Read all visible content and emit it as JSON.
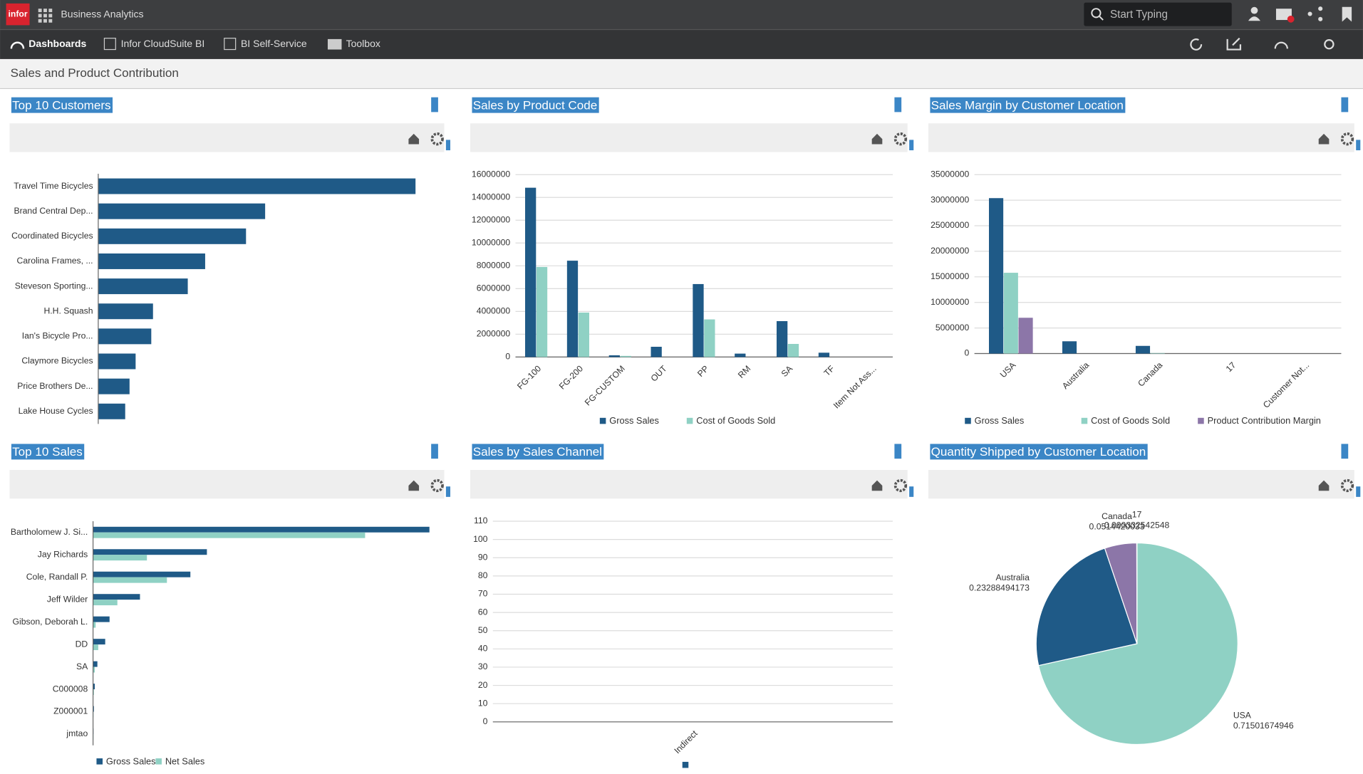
{
  "app": {
    "logo": "infor",
    "name": "Business Analytics",
    "search_placeholder": "Start Typing"
  },
  "nav": [
    "Dashboards",
    "Infor CloudSuite BI",
    "BI Self-Service",
    "Toolbox"
  ],
  "page_title": "Sales and Product Contribution",
  "chart_data": [
    {
      "type": "hbar",
      "title": "Top 10 Customers",
      "categories": [
        "Travel Time Bicycles",
        "Brand Central Dep...",
        "Coordinated Bicycles",
        "Carolina Frames, ...",
        "Steveson Sporting...",
        "H.H. Squash",
        "Ian's Bicycle Pro...",
        "Claymore Bicycles",
        "Price Brothers De...",
        "Lake House Cycles"
      ],
      "values": [
        365,
        192,
        170,
        123,
        103,
        63,
        61,
        43,
        36,
        31
      ],
      "color": "#1f5a87"
    },
    {
      "type": "bar",
      "title": "Sales by Product Code",
      "categories": [
        "FG-100",
        "FG-200",
        "FG-CUSTOM",
        "OUT",
        "PP",
        "RM",
        "SA",
        "TF",
        "Item Not Ass..."
      ],
      "series": [
        {
          "name": "Gross Sales",
          "color": "#1f5a87",
          "values": [
            14850000,
            8450000,
            150000,
            900000,
            6400000,
            300000,
            3150000,
            380000,
            0
          ]
        },
        {
          "name": "Cost of Goods Sold",
          "color": "#8fd1c4",
          "values": [
            7900000,
            3900000,
            100000,
            0,
            3300000,
            0,
            1150000,
            0,
            0
          ]
        }
      ],
      "ylim": [
        0,
        16000000
      ],
      "yticks": [
        0,
        2000000,
        4000000,
        6000000,
        8000000,
        10000000,
        12000000,
        14000000,
        16000000
      ],
      "grid": true
    },
    {
      "type": "bar",
      "title": "Sales Margin by Customer Location",
      "categories": [
        "USA",
        "Australia",
        "Canada",
        "17",
        "Customer Not..."
      ],
      "series": [
        {
          "name": "Gross Sales",
          "color": "#1f5a87",
          "values": [
            30400000,
            2400000,
            1500000,
            0,
            0
          ]
        },
        {
          "name": "Cost of Goods Sold",
          "color": "#8fd1c4",
          "values": [
            15800000,
            0,
            100000,
            0,
            0
          ]
        },
        {
          "name": "Product Contribution Margin",
          "color": "#8c76a8",
          "values": [
            7000000,
            0,
            0,
            0,
            0
          ]
        }
      ],
      "ylim": [
        0,
        35000000
      ],
      "yticks": [
        0,
        5000000,
        10000000,
        15000000,
        20000000,
        25000000,
        30000000,
        35000000
      ],
      "grid": true
    },
    {
      "type": "hbar",
      "title": "Top 10 Sales",
      "categories": [
        "Bartholomew J. Si...",
        "Jay Richards",
        "Cole, Randall P.",
        "Jeff Wilder",
        "Gibson, Deborah L.",
        "DD",
        "SA",
        "C000008",
        "Z000001",
        "jmtao"
      ],
      "series": [
        {
          "name": "Gross Sales",
          "color": "#1f5a87",
          "values": [
            387,
            131,
            112,
            54,
            19,
            14,
            5,
            2,
            1,
            0.5
          ]
        },
        {
          "name": "Net Sales",
          "color": "#8fd1c4",
          "values": [
            313,
            62,
            85,
            28,
            3,
            6,
            2,
            1,
            0.5,
            0.5
          ]
        }
      ]
    },
    {
      "type": "bar",
      "title": "Sales by Sales Channel",
      "categories": [
        "Indirect"
      ],
      "values": [
        0
      ],
      "color": "#1f5a87",
      "ylim": [
        0,
        110
      ],
      "yticks": [
        0,
        10,
        20,
        30,
        40,
        50,
        60,
        70,
        80,
        90,
        100,
        110
      ],
      "grid": true
    },
    {
      "type": "pie",
      "title": "Quantity Shipped by Customer Location",
      "categories": [
        "USA",
        "Australia",
        "Canada",
        "17"
      ],
      "values": [
        0.71501674946,
        0.23288494173,
        0.0514420033,
        0.000332542548
      ],
      "colors": [
        "#8fd1c4",
        "#1f5a87",
        "#8c76a8",
        "#4a4a6a"
      ]
    }
  ]
}
